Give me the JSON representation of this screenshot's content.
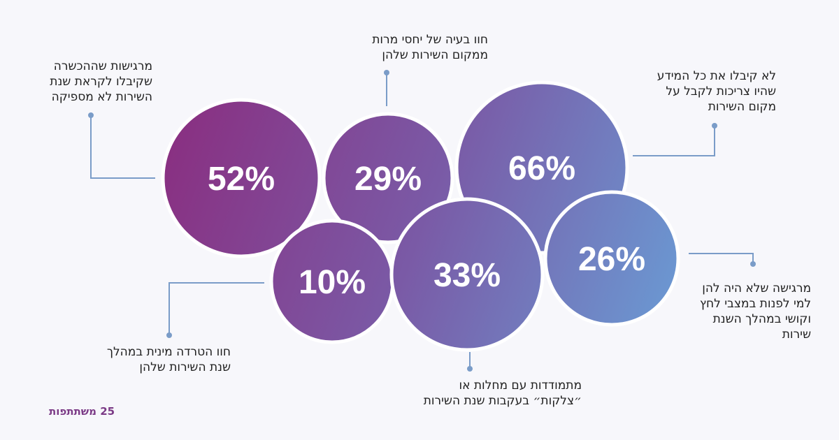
{
  "chart_data": {
    "type": "bubble",
    "bubbles": [
      {
        "id": "52",
        "value": "52%",
        "label": [
          "מרגישות שההכשרה",
          "שקיבלו לקראת שנת",
          "השירות לא מספיקה"
        ]
      },
      {
        "id": "29",
        "value": "29%",
        "label": [
          "חוו בעיה של יחסי מרות",
          "ממקום השירות שלהן"
        ]
      },
      {
        "id": "66",
        "value": "66%",
        "label": [
          "לא קיבלו את כל המידע",
          "שהיו צריכות לקבל על",
          "מקום השירות"
        ]
      },
      {
        "id": "10",
        "value": "10%",
        "label": [
          "חוו הטרדה מינית במהלך",
          "שנת השירות שלהן"
        ]
      },
      {
        "id": "33",
        "value": "33%",
        "label": [
          "מתמודדות עם מחלות או",
          "״צלקות״ בעקבות שנת השירות"
        ]
      },
      {
        "id": "26",
        "value": "26%",
        "label": [
          "מרגישה שלא היה להן",
          "למי לפנות במצבי לחץ",
          "וקושי במהלך השנת",
          "שירות"
        ]
      }
    ]
  },
  "footer": {
    "participants": "25 משתתפות"
  },
  "colors": {
    "gradient_start": "#8a2e80",
    "gradient_end": "#6a9bd4",
    "connector": "#7a9cc8",
    "text": "#1f1f1f",
    "footer": "#7b3a86"
  }
}
